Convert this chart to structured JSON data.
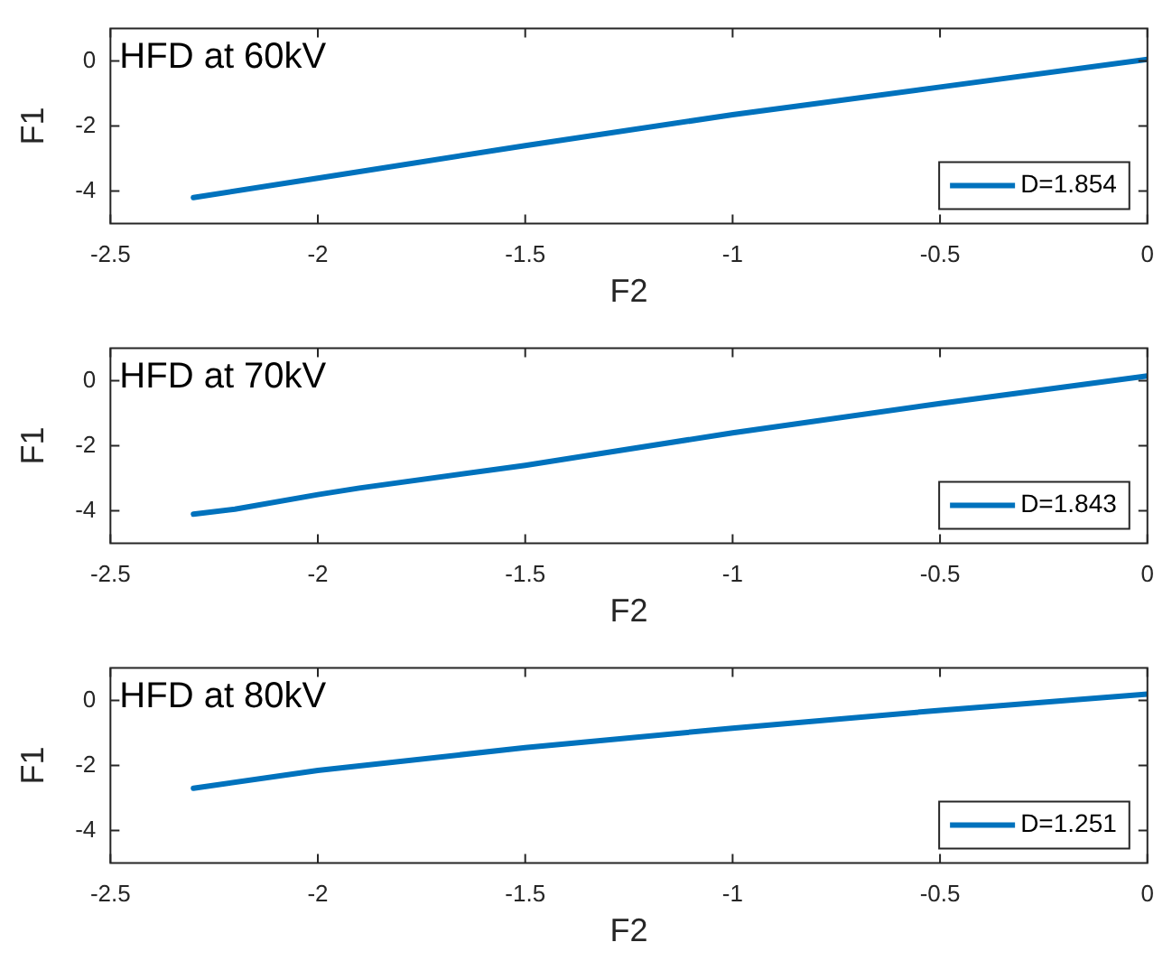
{
  "chart_data": [
    {
      "type": "line",
      "title": "HFD at 60kV",
      "xlabel": "F2",
      "ylabel": "F1",
      "xlim": [
        -2.5,
        0
      ],
      "xticks": [
        -2.5,
        -2,
        -1.5,
        -1,
        -0.5,
        0
      ],
      "ylim": [
        -5,
        1
      ],
      "yticks": [
        -4,
        -2,
        0
      ],
      "grid": false,
      "legend": "bottom right",
      "marker": "none",
      "line_style": "solid",
      "series": [
        {
          "name": "D=1.854",
          "color": "#0072bd",
          "x": [
            -2.3,
            -2,
            -1.5,
            -1,
            -0.5,
            0
          ],
          "values": [
            -4.2,
            -3.6,
            -2.6,
            -1.65,
            -0.8,
            0.05
          ]
        }
      ]
    },
    {
      "type": "line",
      "title": "HFD at 70kV",
      "xlabel": "F2",
      "ylabel": "F1",
      "xlim": [
        -2.5,
        0
      ],
      "xticks": [
        -2.5,
        -2,
        -1.5,
        -1,
        -0.5,
        0
      ],
      "ylim": [
        -5,
        1
      ],
      "yticks": [
        -4,
        -2,
        0
      ],
      "grid": false,
      "legend": "bottom right",
      "marker": "none",
      "line_style": "solid",
      "series": [
        {
          "name": "D=1.843",
          "color": "#0072bd",
          "x": [
            -2.3,
            -2.2,
            -2,
            -1.9,
            -1.5,
            -1,
            -0.5,
            0
          ],
          "values": [
            -4.1,
            -3.95,
            -3.5,
            -3.3,
            -2.6,
            -1.6,
            -0.7,
            0.15
          ]
        }
      ]
    },
    {
      "type": "line",
      "title": "HFD at 80kV",
      "xlabel": "F2",
      "ylabel": "F1",
      "xlim": [
        -2.5,
        0
      ],
      "xticks": [
        -2.5,
        -2,
        -1.5,
        -1,
        -0.5,
        0
      ],
      "ylim": [
        -5,
        1
      ],
      "yticks": [
        -4,
        -2,
        0
      ],
      "grid": false,
      "legend": "bottom right",
      "marker": "none",
      "line_style": "solid",
      "series": [
        {
          "name": "D=1.251",
          "color": "#0072bd",
          "x": [
            -2.3,
            -2,
            -1.5,
            -1,
            -0.5,
            0
          ],
          "values": [
            -2.7,
            -2.15,
            -1.45,
            -0.85,
            -0.3,
            0.2
          ]
        }
      ]
    }
  ]
}
